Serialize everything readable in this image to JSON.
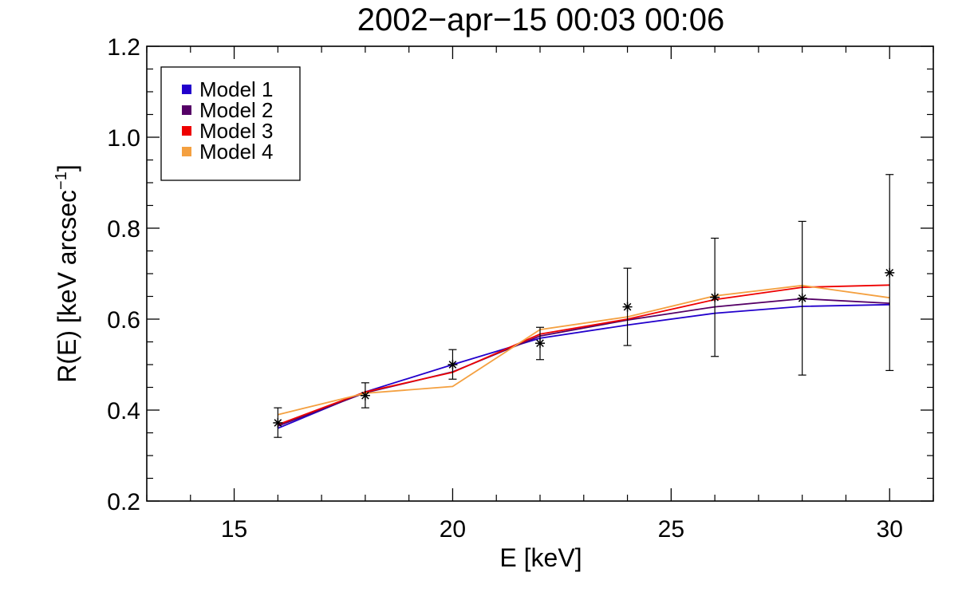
{
  "chart_data": {
    "type": "line",
    "title": "2002−apr−15 00:03 00:06",
    "xlabel": "E [keV]",
    "ylabel": "R(E) [keV arcsec",
    "ylabel_sup": "−1",
    "ylabel_close": "]",
    "xlim": [
      13,
      31
    ],
    "ylim": [
      0.2,
      1.2
    ],
    "x_ticks": [
      15,
      20,
      25,
      30
    ],
    "x_tick_labels": [
      "15",
      "20",
      "25",
      "30"
    ],
    "x_minor_step": 1,
    "y_ticks": [
      0.2,
      0.4,
      0.6,
      0.8,
      1.0,
      1.2
    ],
    "y_tick_labels": [
      "0.2",
      "0.4",
      "0.6",
      "0.8",
      "1.0",
      "1.2"
    ],
    "y_minor_step": 0.05,
    "grid": false,
    "legend_position": "top-left",
    "x": [
      16,
      18,
      20,
      22,
      24,
      26,
      28,
      30
    ],
    "observations": {
      "marker": "asterisk",
      "y": [
        0.372,
        0.432,
        0.5,
        0.547,
        0.627,
        0.648,
        0.646,
        0.702
      ],
      "err_low": [
        0.34,
        0.405,
        0.468,
        0.511,
        0.542,
        0.518,
        0.477,
        0.487
      ],
      "err_high": [
        0.405,
        0.46,
        0.533,
        0.582,
        0.712,
        0.778,
        0.815,
        0.918
      ]
    },
    "series": [
      {
        "name": "Model 1",
        "color": "#2200cc",
        "values": [
          0.36,
          0.44,
          0.5,
          0.558,
          0.587,
          0.613,
          0.628,
          0.632
        ]
      },
      {
        "name": "Model 2",
        "color": "#550066",
        "values": [
          0.365,
          0.438,
          0.484,
          0.563,
          0.598,
          0.627,
          0.645,
          0.635
        ]
      },
      {
        "name": "Model 3",
        "color": "#ee0000",
        "values": [
          0.368,
          0.44,
          0.483,
          0.567,
          0.6,
          0.643,
          0.67,
          0.675
        ]
      },
      {
        "name": "Model 4",
        "color": "#f4a040",
        "values": [
          0.39,
          0.437,
          0.452,
          0.577,
          0.605,
          0.651,
          0.674,
          0.647
        ]
      }
    ]
  }
}
